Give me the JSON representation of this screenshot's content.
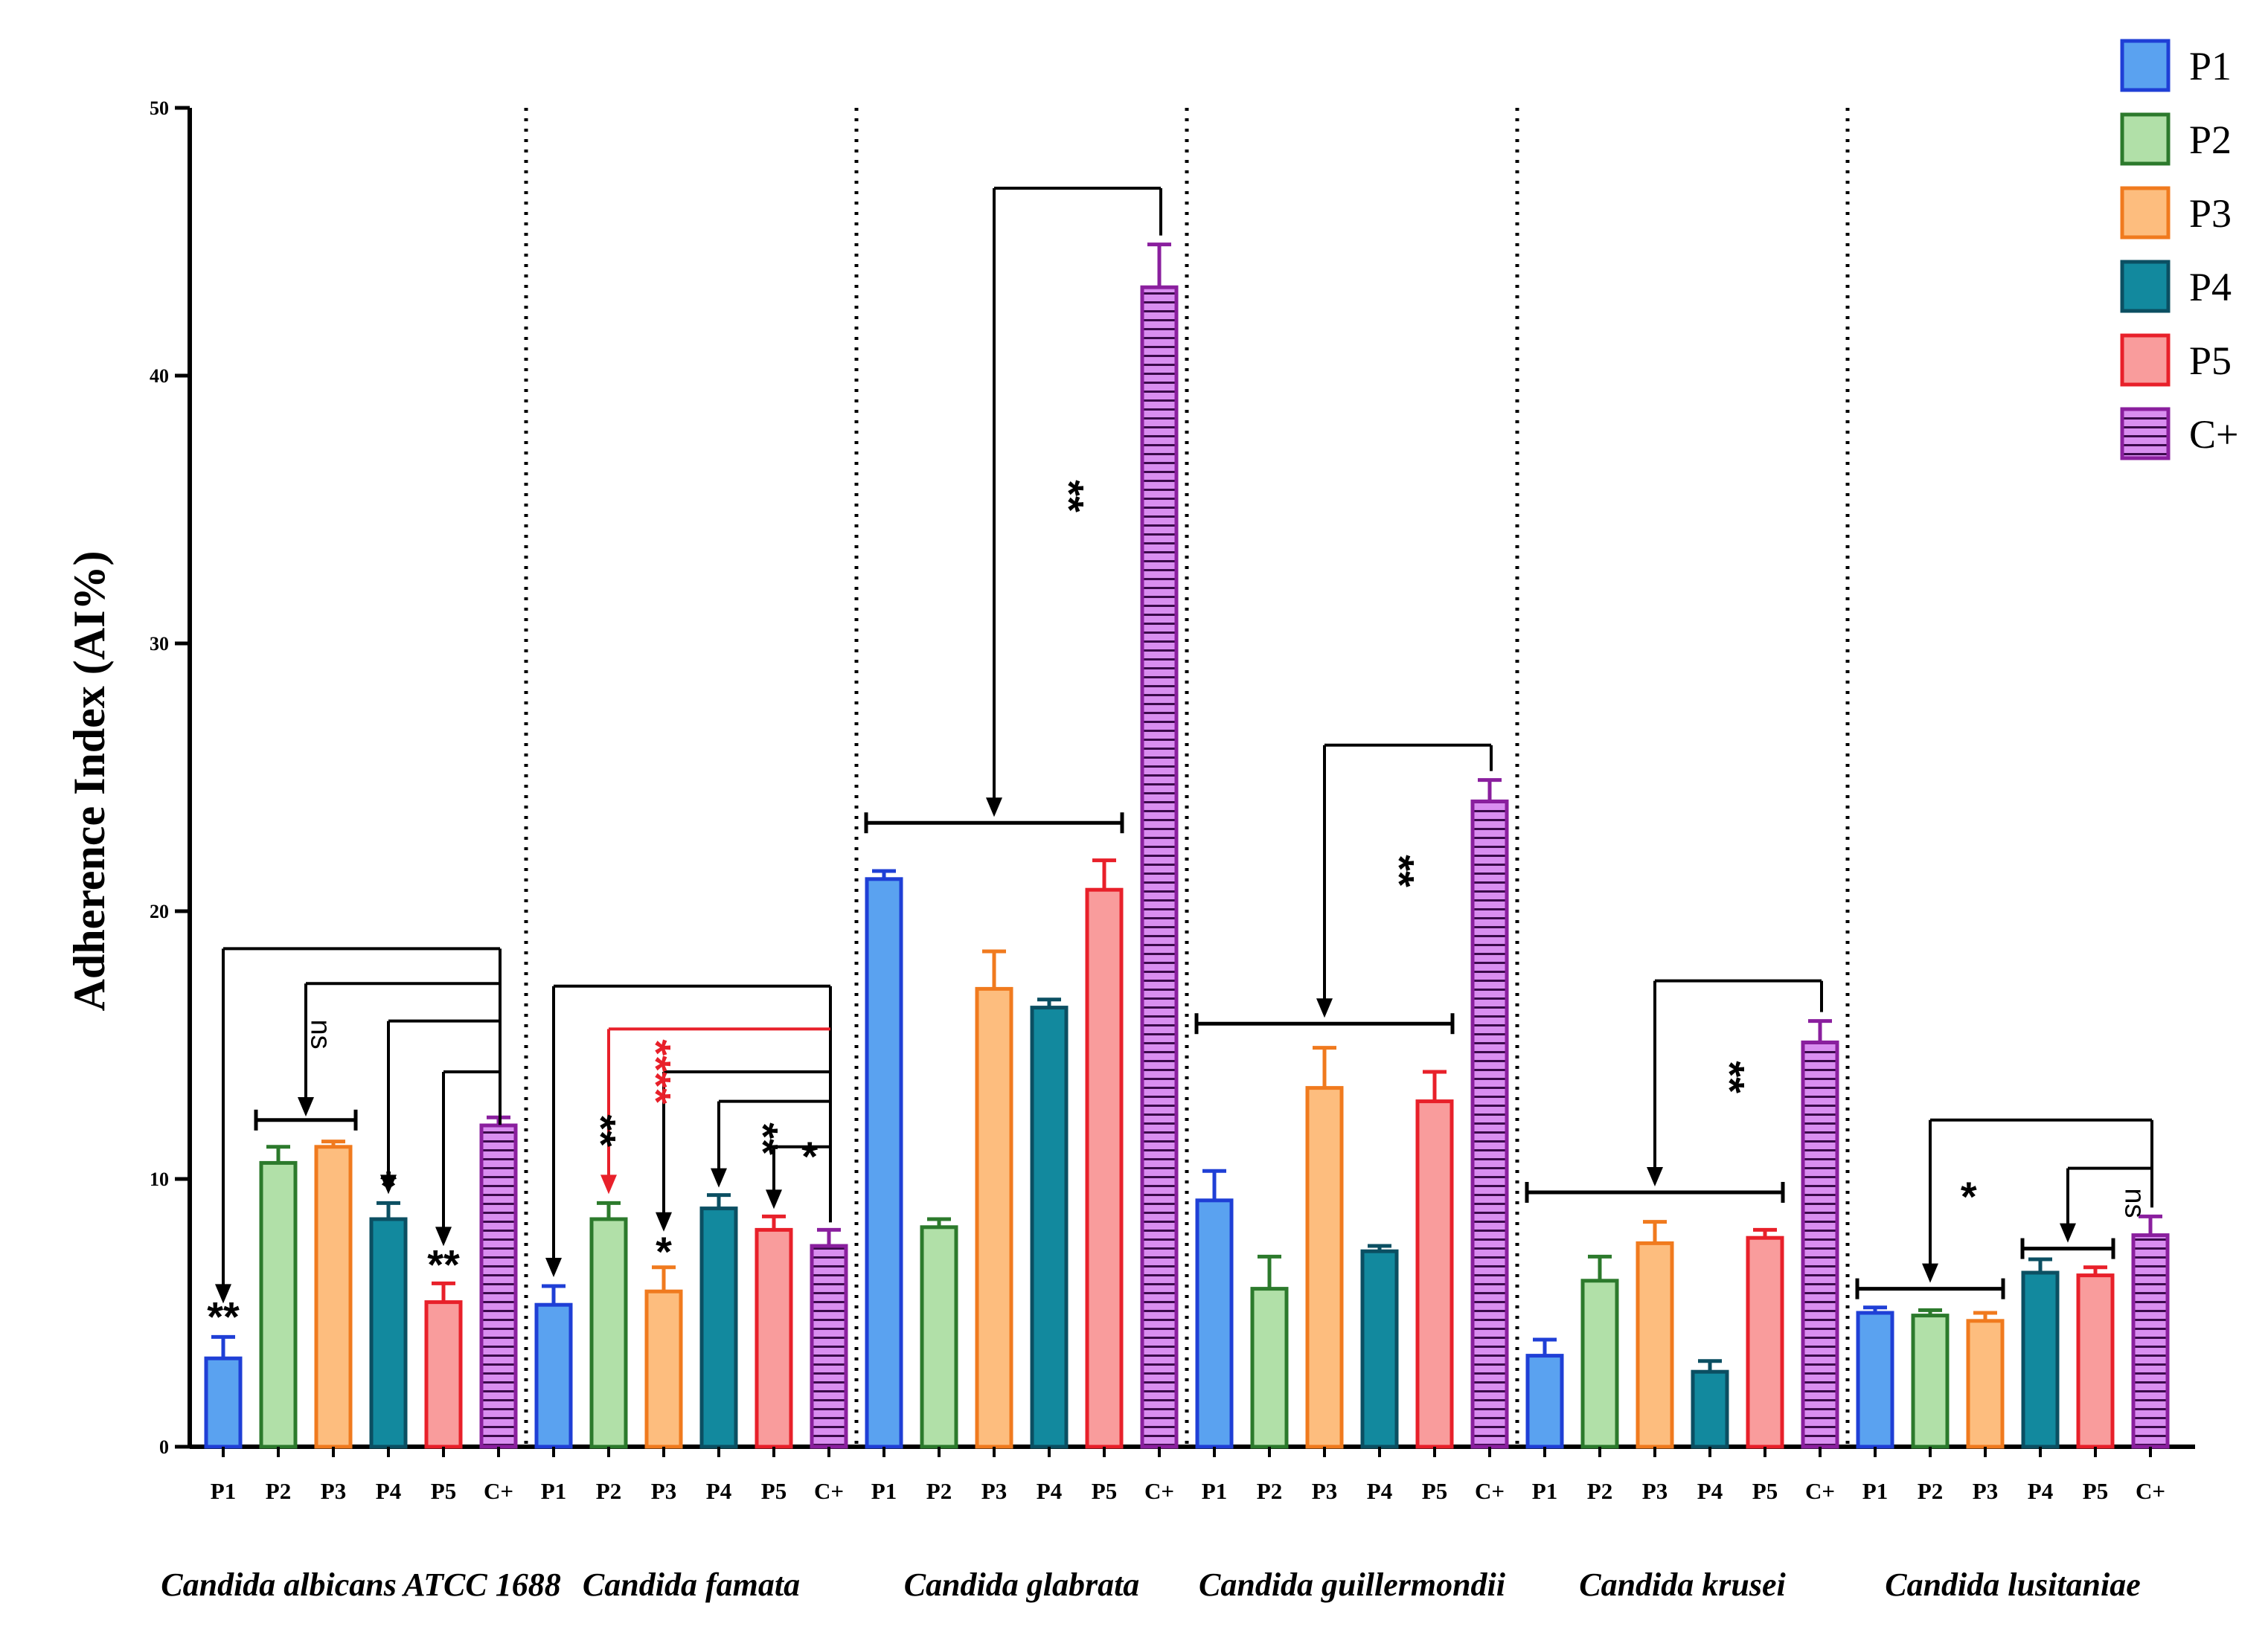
{
  "chart_data": {
    "type": "bar",
    "title": "",
    "ylabel": "Adherence Index (AI%)",
    "xlabel": "",
    "ylim": [
      0,
      50
    ],
    "yticks": [
      0,
      10,
      20,
      30,
      40,
      50
    ],
    "legend_position": "top-right",
    "legend": [
      {
        "name": "P1",
        "fill": "#5aa2f0",
        "stroke": "#1f3fd6"
      },
      {
        "name": "P2",
        "fill": "#b1e0a8",
        "stroke": "#2c7a2c"
      },
      {
        "name": "P3",
        "fill": "#fdbd7e",
        "stroke": "#f07a1e"
      },
      {
        "name": "P4",
        "fill": "#12899e",
        "stroke": "#0b4f62"
      },
      {
        "name": "P5",
        "fill": "#f99c9c",
        "stroke": "#e8202a"
      },
      {
        "name": "C+",
        "fill": "#d98ef0",
        "stroke": "#8a1f9e",
        "pattern": "horizontal-lines"
      }
    ],
    "bar_labels": [
      "P1",
      "P2",
      "P3",
      "P4",
      "P5",
      "C+"
    ],
    "groups": [
      {
        "name": "Candida albicans ATCC 1688",
        "values": [
          3.3,
          10.6,
          11.2,
          8.5,
          5.4,
          12.0
        ],
        "errors": [
          0.8,
          0.6,
          0.2,
          0.6,
          0.7,
          0.3
        ]
      },
      {
        "name": "Candida famata",
        "values": [
          5.3,
          8.5,
          5.8,
          8.9,
          8.1,
          7.5
        ],
        "errors": [
          0.7,
          0.6,
          0.9,
          0.5,
          0.5,
          0.6
        ]
      },
      {
        "name": "Candida glabrata",
        "values": [
          21.2,
          8.2,
          17.1,
          16.4,
          20.8,
          43.3
        ],
        "errors": [
          0.3,
          0.3,
          1.4,
          0.3,
          1.1,
          1.6
        ]
      },
      {
        "name": "Candida guillermondii",
        "values": [
          9.2,
          5.9,
          13.4,
          7.3,
          12.9,
          24.1
        ],
        "errors": [
          1.1,
          1.2,
          1.5,
          0.2,
          1.1,
          0.8
        ]
      },
      {
        "name": "Candida krusei",
        "values": [
          3.4,
          6.2,
          7.6,
          2.8,
          7.8,
          15.1
        ],
        "errors": [
          0.6,
          0.9,
          0.8,
          0.4,
          0.3,
          0.8
        ]
      },
      {
        "name": "Candida lusitaniae",
        "values": [
          5.0,
          4.9,
          4.7,
          6.5,
          6.4,
          7.9
        ],
        "errors": [
          0.2,
          0.2,
          0.3,
          0.5,
          0.3,
          0.7
        ]
      }
    ],
    "annotations": [
      {
        "group": 0,
        "label": "**",
        "kind": "single",
        "target": 0,
        "color": "#000000"
      },
      {
        "group": 0,
        "label": "ns",
        "kind": "range",
        "targets": [
          1,
          2
        ],
        "color": "#000000"
      },
      {
        "group": 0,
        "label": "*",
        "kind": "single",
        "target": 3,
        "color": "#000000"
      },
      {
        "group": 0,
        "label": "**",
        "kind": "single",
        "target": 4,
        "color": "#000000"
      },
      {
        "group": 1,
        "label": "**",
        "kind": "single",
        "target": 1,
        "color": "#e8202a"
      },
      {
        "group": 1,
        "label": "****",
        "kind": "single",
        "target": 1,
        "color": "#e8202a"
      },
      {
        "group": 1,
        "label": "*",
        "kind": "single",
        "target": 2,
        "color": "#000000"
      },
      {
        "group": 1,
        "label": "**",
        "kind": "single",
        "target": 4,
        "color": "#000000"
      },
      {
        "group": 1,
        "label": "*",
        "kind": "single",
        "target": 5,
        "color": "#000000"
      },
      {
        "group": 2,
        "label": "**",
        "kind": "range",
        "targets": [
          0,
          4
        ],
        "color": "#000000"
      },
      {
        "group": 3,
        "label": "**",
        "kind": "range",
        "targets": [
          0,
          4
        ],
        "color": "#000000"
      },
      {
        "group": 4,
        "label": "**",
        "kind": "range",
        "targets": [
          0,
          4
        ],
        "color": "#000000"
      },
      {
        "group": 5,
        "label": "*",
        "kind": "range",
        "targets": [
          0,
          2
        ],
        "color": "#000000"
      },
      {
        "group": 5,
        "label": "ns",
        "kind": "range",
        "targets": [
          3,
          4
        ],
        "color": "#000000"
      }
    ]
  }
}
